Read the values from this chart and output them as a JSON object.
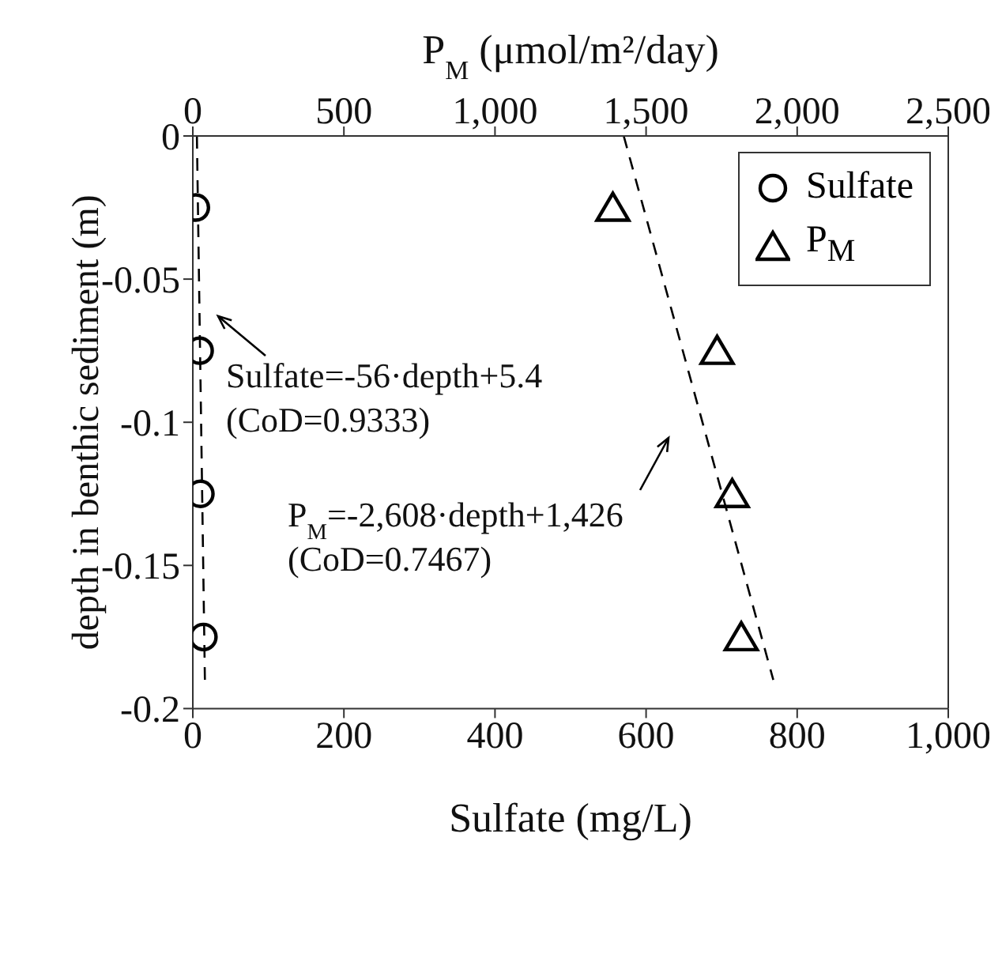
{
  "chart_data": {
    "type": "scatter",
    "xlabel": "Sulfate (mg/L)",
    "x2label": "P$_{M}$ (μmol/m²/day)",
    "ylabel": "depth in benthic sediment (m)",
    "xlim": [
      0,
      1000
    ],
    "xticks": [
      0,
      200,
      400,
      600,
      800,
      {
        "value": 1000,
        "label": "1,000"
      }
    ],
    "x2lim": [
      0,
      2500
    ],
    "x2ticks": [
      0,
      500,
      {
        "value": 1000,
        "label": "1,000"
      },
      {
        "value": 1500,
        "label": "1,500"
      },
      {
        "value": 2000,
        "label": "2,000"
      },
      {
        "value": 2500,
        "label": "2,500"
      }
    ],
    "ylim": [
      -0.2,
      0
    ],
    "yticks": [
      -0.2,
      -0.15,
      -0.1,
      -0.05,
      0
    ],
    "legend": "top right",
    "grid": false,
    "series": [
      {
        "name": "Sulfate",
        "marker": "circle",
        "color": "#000000",
        "x": [
          4,
          9,
          10,
          14
        ],
        "values": [
          -0.025,
          -0.075,
          -0.125,
          -0.175
        ]
      },
      {
        "name": "P$_{M}$",
        "marker": "triangle",
        "color": "#000000",
        "axis": "x2",
        "x": [
          1390,
          1735,
          1785,
          1815
        ],
        "values": [
          -0.025,
          -0.075,
          -0.125,
          -0.175
        ]
      },
      {
        "type": "line",
        "line_style": "dashed",
        "marker": "none",
        "color": "#000000",
        "x": [
          5.4,
          16
        ],
        "values": [
          0,
          -0.19
        ]
      },
      {
        "type": "line",
        "line_style": "dashed",
        "marker": "none",
        "color": "#000000",
        "axis": "x2",
        "x": [
          1426,
          1921
        ],
        "values": [
          0,
          -0.19
        ]
      }
    ],
    "annotations": [
      "Sulfate=-56·depth+5.4\n(CoD=0.9333)",
      "P$_{M}$=-2,608·depth+1,426\n(CoD=0.7467)"
    ]
  }
}
